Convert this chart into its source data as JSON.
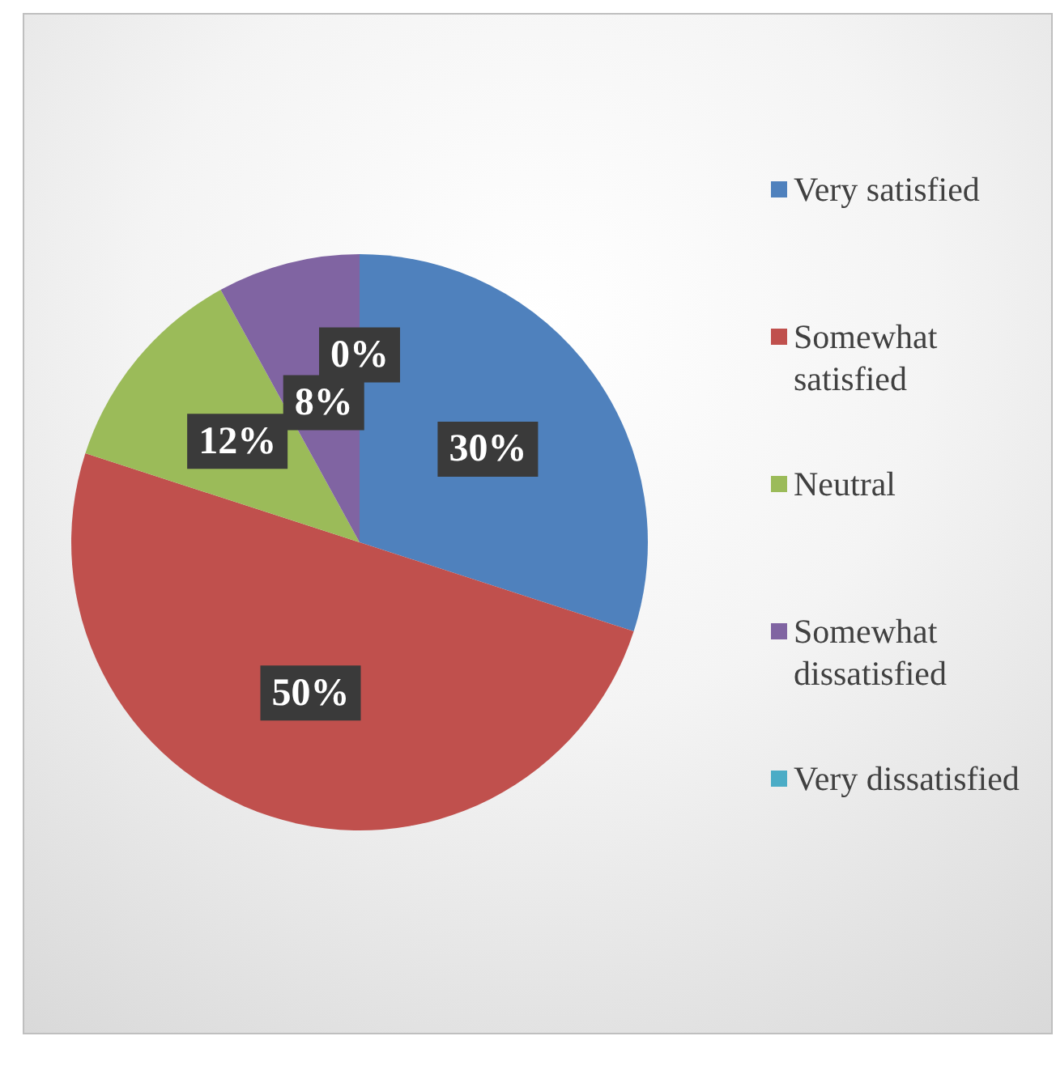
{
  "chart_data": {
    "type": "pie",
    "categories": [
      "Very satisfied",
      "Somewhat satisfied",
      "Neutral",
      "Somewhat dissatisfied",
      "Very dissatisfied"
    ],
    "values": [
      30,
      50,
      12,
      8,
      0
    ],
    "colors": [
      "#4f81bd",
      "#c0504d",
      "#9bbb59",
      "#8064a2",
      "#4bacc6"
    ],
    "value_labels": [
      "30%",
      "50%",
      "12%",
      "8%",
      "0%"
    ],
    "legend": "right"
  }
}
